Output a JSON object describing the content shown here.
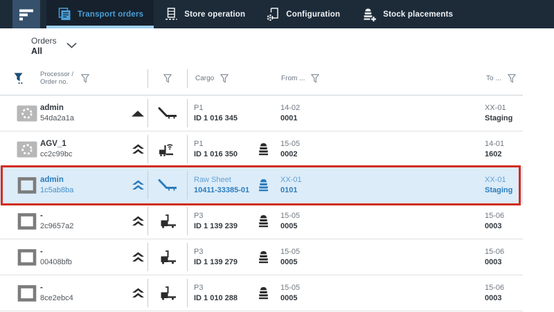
{
  "nav": {
    "logo_icon": "app-logo-icon",
    "tabs": [
      {
        "label": "Transport orders",
        "icon": "documents-stack-icon",
        "active": true
      },
      {
        "label": "Store operation",
        "icon": "warehouse-rack-icon",
        "active": false
      },
      {
        "label": "Configuration",
        "icon": "document-gear-icon",
        "active": false
      },
      {
        "label": "Stock placements",
        "icon": "stack-plus-icon",
        "active": false
      }
    ]
  },
  "filter_panel": {
    "label": "Orders",
    "value": "All",
    "chevron_icon": "chevron-down-icon"
  },
  "table": {
    "header": {
      "filter_applied_icon": "funnel-filled-icon",
      "column_filter_icon": "funnel-outline-icon",
      "processor_label_line1": "Processor /",
      "processor_label_line2": "Order no.",
      "cargo_label": "Cargo",
      "from_label": "From ...",
      "to_label": "To ..."
    },
    "rows": [
      {
        "status_icon": "spinner-status-icon",
        "processor_name": "admin",
        "order_no": "54da2a1a",
        "priority_icon": "single-chevron-up-icon",
        "cargo_icon": "sheet-cart-icon",
        "cargo_line1": "P1",
        "cargo_line2": "ID 1 016 345",
        "stack_icon": false,
        "from_line1": "14-02",
        "from_line2": "0001",
        "to_line1": "XX-01",
        "to_line2": "Staging",
        "selected": false
      },
      {
        "status_icon": "spinner-status-icon",
        "processor_name": "AGV_1",
        "order_no": "cc2c99bc",
        "priority_icon": "double-chevron-up-icon",
        "cargo_icon": "agv-wifi-icon",
        "cargo_line1": "P1",
        "cargo_line2": "ID 1 016 350",
        "stack_icon": true,
        "from_line1": "15-05",
        "from_line2": "0002",
        "to_line1": "14-01",
        "to_line2": "1602",
        "selected": false
      },
      {
        "status_icon": "square-status-icon",
        "processor_name": "admin",
        "order_no": "1c5ab8ba",
        "priority_icon": "double-chevron-up-icon",
        "cargo_icon": "sheet-cart-icon",
        "cargo_line1": "Raw Sheet",
        "cargo_line2": "10411-33385-01",
        "stack_icon": true,
        "from_line1": "XX-01",
        "from_line2": "0101",
        "to_line1": "XX-01",
        "to_line2": "Staging",
        "selected": true
      },
      {
        "status_icon": "square-status-icon",
        "processor_name": "-",
        "order_no": "2c9657a2",
        "priority_icon": "double-chevron-up-icon",
        "cargo_icon": "pallet-truck-icon",
        "cargo_line1": "P3",
        "cargo_line2": "ID 1 139 239",
        "stack_icon": true,
        "from_line1": "15-05",
        "from_line2": "0005",
        "to_line1": "15-06",
        "to_line2": "0003",
        "selected": false
      },
      {
        "status_icon": "square-status-icon",
        "processor_name": "-",
        "order_no": "00408bfb",
        "priority_icon": "double-chevron-up-icon",
        "cargo_icon": "pallet-truck-icon",
        "cargo_line1": "P3",
        "cargo_line2": "ID 1 139 279",
        "stack_icon": true,
        "from_line1": "15-05",
        "from_line2": "0005",
        "to_line1": "15-06",
        "to_line2": "0003",
        "selected": false
      },
      {
        "status_icon": "square-status-icon",
        "processor_name": "-",
        "order_no": "8ce2ebc4",
        "priority_icon": "double-chevron-up-icon",
        "cargo_icon": "pallet-truck-icon",
        "cargo_line1": "P3",
        "cargo_line2": "ID 1 010 288",
        "stack_icon": true,
        "from_line1": "15-05",
        "from_line2": "0005",
        "to_line1": "15-06",
        "to_line2": "0003",
        "selected": false
      }
    ]
  },
  "annotation": {
    "type": "red-highlight-box",
    "row_index": 2,
    "color": "#d22c1d"
  },
  "colors": {
    "nav_bg": "#1d2b39",
    "nav_active_tab_bg": "#16212d",
    "logo_tile_bg": "#35516c",
    "active_tab_text": "#4aa0d8",
    "inactive_tab_text": "#f0f3f6",
    "tab_underline": "#9fd0ef",
    "selected_row_bg": "#dcecf8",
    "selected_row_text": "#2b7cbe",
    "filled_funnel": "#1d4e74",
    "annotation_red": "#d22c1d"
  }
}
